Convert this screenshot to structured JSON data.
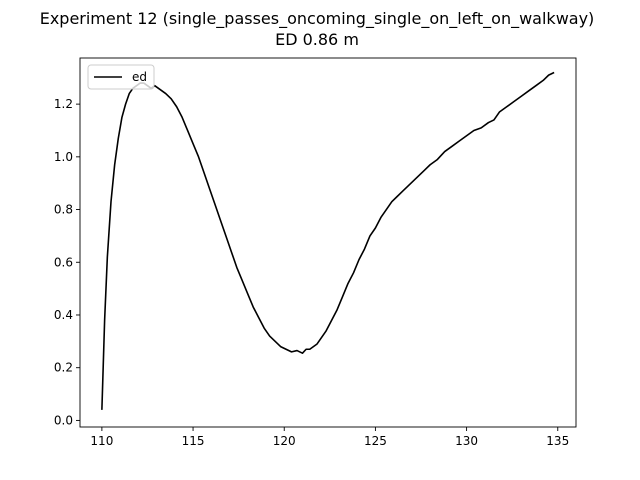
{
  "chart_data": {
    "type": "line",
    "title": "Experiment 12 (single_passes_oncoming_single_on_left_on_walkway)",
    "subtitle": "ED 0.86 m",
    "xlabel": "",
    "ylabel": "",
    "xlim": [
      108.8,
      136.0
    ],
    "ylim": [
      -0.025,
      1.375
    ],
    "xticks": [
      110,
      115,
      120,
      125,
      130,
      135
    ],
    "xtick_labels": [
      "110",
      "115",
      "120",
      "125",
      "130",
      "135"
    ],
    "yticks": [
      0.0,
      0.2,
      0.4,
      0.6,
      0.8,
      1.0,
      1.2
    ],
    "ytick_labels": [
      "0.0",
      "0.2",
      "0.4",
      "0.6",
      "0.8",
      "1.0",
      "1.2"
    ],
    "grid": false,
    "legend_position": "top-left",
    "series": [
      {
        "name": "ed",
        "color": "#000000",
        "x": [
          110.0,
          110.15,
          110.3,
          110.5,
          110.7,
          110.9,
          111.1,
          111.3,
          111.5,
          111.7,
          111.9,
          112.1,
          112.3,
          112.5,
          112.7,
          112.9,
          113.1,
          113.3,
          113.5,
          113.8,
          114.1,
          114.4,
          114.7,
          115.0,
          115.3,
          115.6,
          115.9,
          116.2,
          116.5,
          116.8,
          117.1,
          117.4,
          117.7,
          118.0,
          118.3,
          118.6,
          118.9,
          119.2,
          119.5,
          119.8,
          120.1,
          120.4,
          120.7,
          121.0,
          121.2,
          121.4,
          121.6,
          121.8,
          122.0,
          122.3,
          122.6,
          122.9,
          123.2,
          123.5,
          123.8,
          124.1,
          124.4,
          124.7,
          125.0,
          125.3,
          125.6,
          125.9,
          126.2,
          126.5,
          126.8,
          127.1,
          127.4,
          127.7,
          128.0,
          128.4,
          128.8,
          129.2,
          129.6,
          130.0,
          130.4,
          130.8,
          131.2,
          131.5,
          131.8,
          132.2,
          132.6,
          133.0,
          133.4,
          133.8,
          134.2,
          134.5,
          134.8
        ],
        "y": [
          0.04,
          0.38,
          0.62,
          0.83,
          0.97,
          1.07,
          1.15,
          1.2,
          1.24,
          1.26,
          1.27,
          1.28,
          1.28,
          1.27,
          1.26,
          1.27,
          1.26,
          1.25,
          1.24,
          1.22,
          1.19,
          1.15,
          1.1,
          1.05,
          1.0,
          0.94,
          0.88,
          0.82,
          0.76,
          0.7,
          0.64,
          0.58,
          0.53,
          0.48,
          0.43,
          0.39,
          0.35,
          0.32,
          0.3,
          0.28,
          0.27,
          0.26,
          0.265,
          0.255,
          0.27,
          0.27,
          0.28,
          0.29,
          0.31,
          0.34,
          0.38,
          0.42,
          0.47,
          0.52,
          0.56,
          0.61,
          0.65,
          0.7,
          0.73,
          0.77,
          0.8,
          0.83,
          0.85,
          0.87,
          0.89,
          0.91,
          0.93,
          0.95,
          0.97,
          0.99,
          1.02,
          1.04,
          1.06,
          1.08,
          1.1,
          1.11,
          1.13,
          1.14,
          1.17,
          1.19,
          1.21,
          1.23,
          1.25,
          1.27,
          1.29,
          1.31,
          1.32
        ]
      }
    ]
  }
}
